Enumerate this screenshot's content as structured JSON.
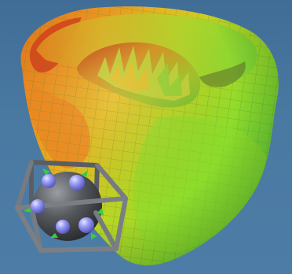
{
  "viewport": {
    "background_top": "#3f6d96",
    "background_bottom": "#4d7ca6"
  },
  "mesh": {
    "kind": "3d-surface-mesh",
    "colormap": [
      "#c81818",
      "#e84a14",
      "#f0861c",
      "#e8b020",
      "#c8d420",
      "#8fdc2a",
      "#4bd83a"
    ],
    "grid_color": "#7d8a3a"
  },
  "orientation_cube": {
    "icon": "orientation-cube-icon",
    "frame_color": "#6f747a",
    "sphere_color": "#4a4d52",
    "node_color": "#8e8ff0",
    "arrow_color": "#32c832"
  }
}
